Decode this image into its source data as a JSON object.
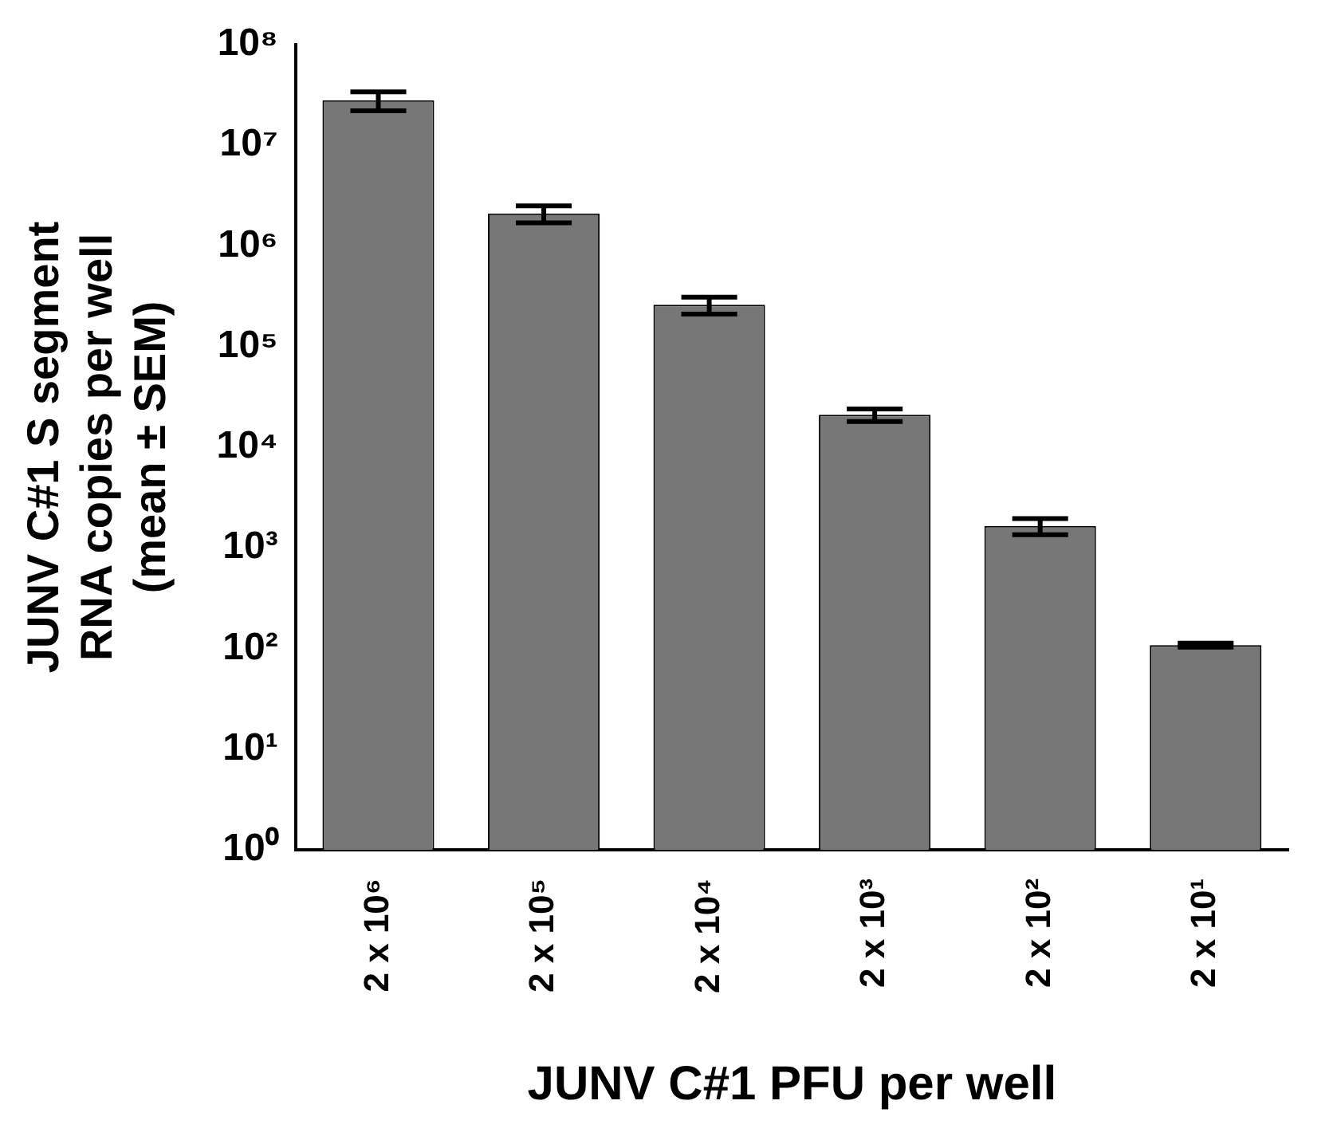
{
  "chart_data": {
    "type": "bar",
    "xlabel": "JUNV C#1 PFU per well",
    "ylabel": "JUNV C#1 S segment RNA copies per well (mean ± SEM)",
    "categories": [
      "2 x 10⁶",
      "2 x 10⁵",
      "2 x 10⁴",
      "2 x 10³",
      "2 x 10²",
      "2 x 10¹"
    ],
    "values": [
      28000000,
      2100000,
      260000,
      21000,
      1650,
      108
    ],
    "errors": [
      6000000,
      400000,
      50000,
      3000,
      300,
      5
    ],
    "color": "#777777",
    "log": true,
    "grid": false,
    "legend": false,
    "ylim": [
      1,
      100000000
    ],
    "yticks": [
      {
        "value": 1,
        "label": "10⁰"
      },
      {
        "value": 10,
        "label": "10¹"
      },
      {
        "value": 100,
        "label": "10²"
      },
      {
        "value": 1000,
        "label": "10³"
      },
      {
        "value": 10000,
        "label": "10⁴"
      },
      {
        "value": 100000,
        "label": "10⁵"
      },
      {
        "value": 1000000,
        "label": "10⁶"
      },
      {
        "value": 10000000,
        "label": "10⁷"
      },
      {
        "value": 100000000,
        "label": "10⁸"
      }
    ]
  }
}
